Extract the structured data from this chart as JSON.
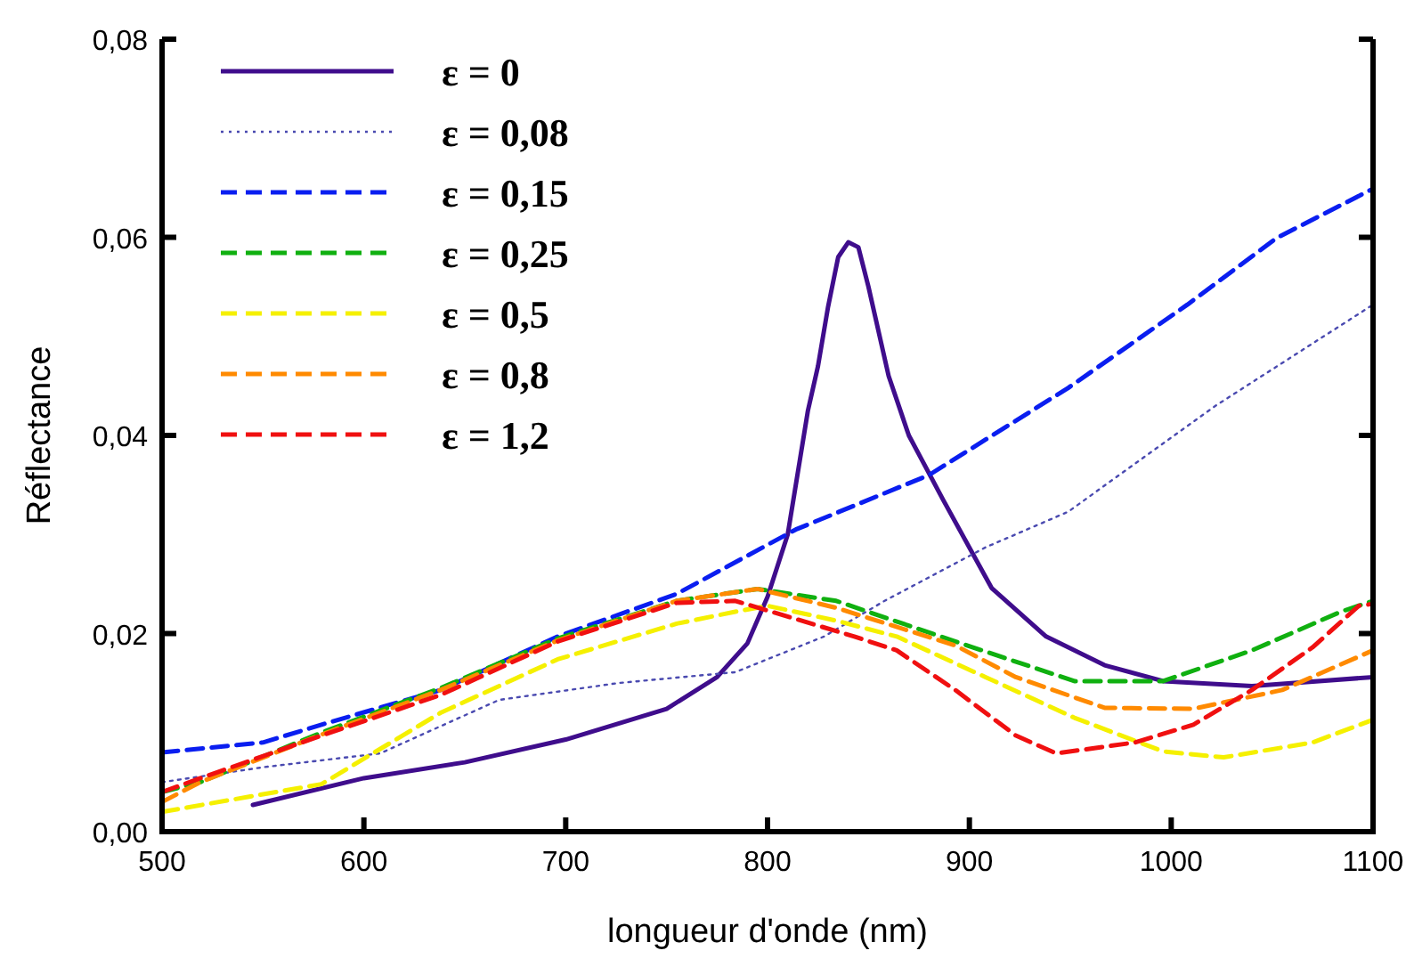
{
  "chart_data": {
    "type": "line",
    "xlabel": "longueur d'onde (nm)",
    "ylabel": "Réflectance",
    "xlim": [
      500,
      1100
    ],
    "xticks": [
      500,
      600,
      700,
      800,
      900,
      1000,
      1100
    ],
    "ylim": [
      0,
      0.08
    ],
    "yticks": [
      {
        "value": 0,
        "label": "0,00"
      },
      {
        "value": 0.02,
        "label": "0,02"
      },
      {
        "value": 0.04,
        "label": "0,04"
      },
      {
        "value": 0.06,
        "label": "0,06"
      },
      {
        "value": 0.08,
        "label": "0,08"
      }
    ],
    "grid": false,
    "legend": "top left",
    "marker": "none",
    "series": [
      {
        "name": "ε = 0",
        "color": "#3f0d8c",
        "line_style": "solid",
        "x": [
          545,
          600,
          650,
          700,
          750,
          775,
          790,
          800,
          810,
          820,
          825,
          830,
          835,
          840,
          845,
          850,
          860,
          870,
          887,
          911,
          938,
          967,
          996,
          1040,
          1100
        ],
        "values": [
          0.0027,
          0.0054,
          0.007,
          0.0093,
          0.0124,
          0.0156,
          0.019,
          0.0237,
          0.03,
          0.0425,
          0.047,
          0.053,
          0.058,
          0.0595,
          0.059,
          0.055,
          0.046,
          0.04,
          0.0335,
          0.0246,
          0.0197,
          0.0168,
          0.0152,
          0.0147,
          0.0156
        ]
      },
      {
        "name": "ε = 0,08",
        "color": "#4a4ab0",
        "line_style": "dotted",
        "x": [
          500,
          550,
          608,
          667,
          726,
          784,
          828,
          858,
          908,
          949,
          1022,
          1100
        ],
        "values": [
          0.005,
          0.0065,
          0.0079,
          0.0133,
          0.015,
          0.0161,
          0.0197,
          0.0233,
          0.0287,
          0.0323,
          0.043,
          0.0532
        ]
      },
      {
        "name": "ε = 0,15",
        "color": "#0a1ef0",
        "line_style": "dashed",
        "x": [
          500,
          550,
          579,
          638,
          696,
          755,
          814,
          880,
          949,
          1008,
          1052,
          1100
        ],
        "values": [
          0.008,
          0.009,
          0.0108,
          0.0143,
          0.0197,
          0.024,
          0.0305,
          0.036,
          0.0448,
          0.0532,
          0.0599,
          0.0649
        ]
      },
      {
        "name": "ε = 0,25",
        "color": "#10b010",
        "line_style": "dashed",
        "x": [
          500,
          519,
          579,
          638,
          696,
          755,
          795,
          834,
          893,
          952,
          996,
          1040,
          1084,
          1100
        ],
        "values": [
          0.004,
          0.005,
          0.01,
          0.0145,
          0.0195,
          0.0233,
          0.0245,
          0.0233,
          0.0192,
          0.0152,
          0.0152,
          0.0183,
          0.0222,
          0.0233
        ]
      },
      {
        "name": "ε = 0,5",
        "color": "#f5f000",
        "line_style": "dashed",
        "x": [
          500,
          579,
          638,
          696,
          755,
          784,
          800,
          834,
          864,
          908,
          952,
          996,
          1026,
          1070,
          1100
        ],
        "values": [
          0.002,
          0.0048,
          0.012,
          0.0174,
          0.021,
          0.0222,
          0.0228,
          0.0213,
          0.0197,
          0.0156,
          0.0115,
          0.0081,
          0.0075,
          0.009,
          0.0113
        ]
      },
      {
        "name": "ε = 0,8",
        "color": "#ff8a00",
        "line_style": "dashed",
        "x": [
          500,
          519,
          579,
          638,
          696,
          755,
          795,
          834,
          893,
          923,
          967,
          1011,
          1055,
          1100
        ],
        "values": [
          0.003,
          0.005,
          0.0098,
          0.0143,
          0.0193,
          0.0233,
          0.0245,
          0.0226,
          0.0188,
          0.0156,
          0.0125,
          0.0124,
          0.0143,
          0.0183
        ]
      },
      {
        "name": "ε = 1,2",
        "color": "#f01010",
        "line_style": "dashed",
        "x": [
          500,
          519,
          579,
          638,
          696,
          755,
          784,
          843,
          864,
          893,
          923,
          943,
          982,
          1011,
          1040,
          1070,
          1093,
          1100
        ],
        "values": [
          0.004,
          0.0054,
          0.0097,
          0.0138,
          0.0192,
          0.0231,
          0.0233,
          0.0197,
          0.0183,
          0.0143,
          0.0097,
          0.0079,
          0.009,
          0.0108,
          0.0143,
          0.0186,
          0.0228,
          0.023
        ]
      }
    ]
  }
}
